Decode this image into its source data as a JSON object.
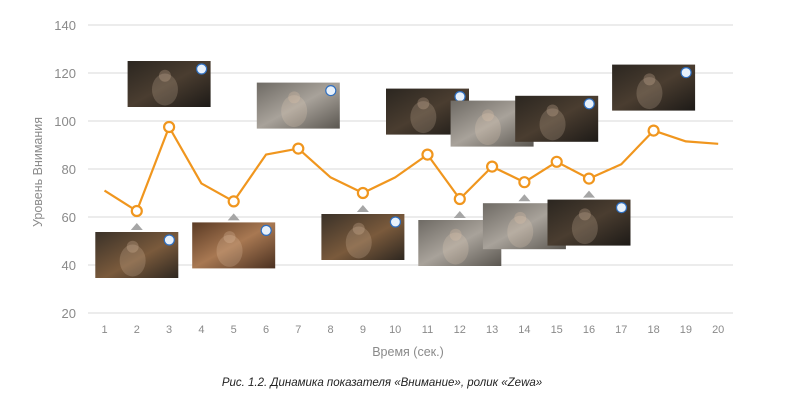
{
  "chart_data": {
    "type": "line",
    "x": [
      1,
      2,
      3,
      4,
      5,
      6,
      7,
      8,
      9,
      10,
      11,
      12,
      13,
      14,
      15,
      16,
      17,
      18,
      19,
      20
    ],
    "series": [
      {
        "values": [
          71,
          62.5,
          97.5,
          74,
          66.5,
          86,
          88.5,
          76.5,
          70,
          76.5,
          86,
          67.5,
          81,
          74.5,
          83,
          76,
          82,
          96,
          91.5,
          90.5
        ],
        "color": "#f0961e",
        "marked_points": [
          2,
          3,
          5,
          7,
          9,
          11,
          12,
          13,
          14,
          15,
          16,
          18
        ]
      }
    ],
    "xlabel": "Время (сек.)",
    "ylabel": "Уровень Внимания",
    "ylim": [
      20,
      140
    ],
    "yticks": [
      20,
      40,
      60,
      80,
      100,
      120,
      140
    ],
    "grid": true,
    "thumbnails": [
      {
        "x": 2,
        "pos": "below",
        "tone": "dark-warm"
      },
      {
        "x": 3,
        "pos": "above",
        "tone": "dark"
      },
      {
        "x": 5,
        "pos": "below",
        "tone": "warm"
      },
      {
        "x": 7,
        "pos": "above",
        "tone": "grey"
      },
      {
        "x": 9,
        "pos": "below",
        "tone": "dark-warm"
      },
      {
        "x": 11,
        "pos": "above",
        "tone": "dark"
      },
      {
        "x": 12,
        "pos": "below",
        "tone": "grey"
      },
      {
        "x": 13,
        "pos": "above",
        "tone": "grey"
      },
      {
        "x": 14,
        "pos": "below",
        "tone": "grey"
      },
      {
        "x": 15,
        "pos": "above",
        "tone": "dark"
      },
      {
        "x": 16,
        "pos": "below",
        "tone": "dark"
      },
      {
        "x": 18,
        "pos": "above",
        "tone": "dark"
      }
    ]
  },
  "caption": "Рис. 1.2. Динамика показателя «Внимание», ролик «Zewa»",
  "colors": {
    "line": "#f0961e",
    "grid": "#d9d9d9",
    "tick": "#8a8a8a",
    "triangle": "#a6a6a6"
  }
}
